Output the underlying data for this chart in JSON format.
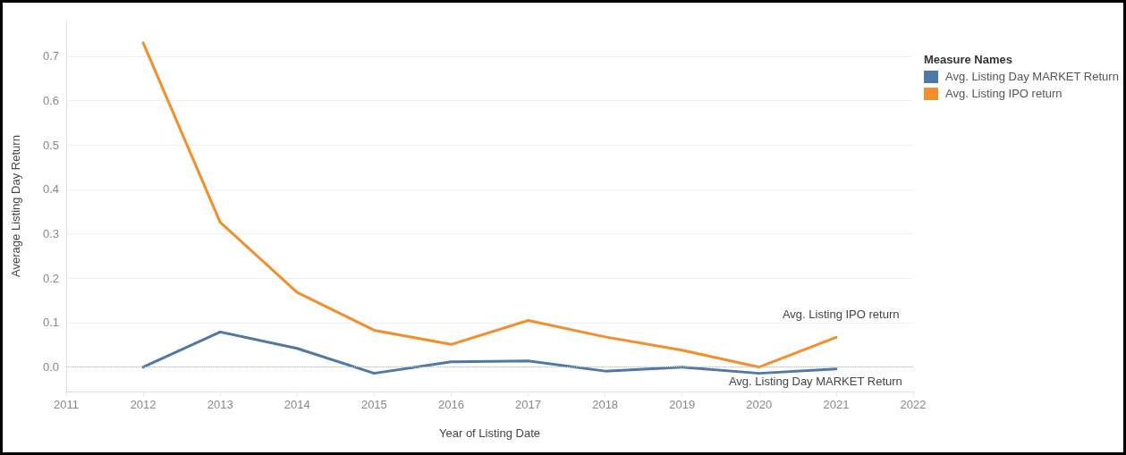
{
  "chart_data": {
    "type": "line",
    "xlabel": "Year of Listing Date",
    "ylabel": "Average Listing Day Return",
    "legend_title": "Measure Names",
    "x": [
      2012,
      2013,
      2014,
      2015,
      2016,
      2017,
      2018,
      2019,
      2020,
      2021
    ],
    "series": [
      {
        "name": "Avg. Listing Day MARKET Return",
        "color": "#4e79a7",
        "values": [
          0.0,
          0.079,
          0.042,
          -0.014,
          0.012,
          0.014,
          -0.009,
          0.0,
          -0.014,
          -0.004
        ]
      },
      {
        "name": "Avg. Listing IPO return",
        "color": "#f28e2b",
        "values": [
          0.73,
          0.326,
          0.168,
          0.083,
          0.051,
          0.105,
          0.068,
          0.038,
          0.0,
          0.067
        ]
      }
    ],
    "xlim": [
      2011,
      2022
    ],
    "xticks": [
      2011,
      2012,
      2013,
      2014,
      2015,
      2016,
      2017,
      2018,
      2019,
      2020,
      2021,
      2022
    ],
    "ylim": [
      -0.055,
      0.78
    ],
    "yticks": [
      {
        "value": 0,
        "label": "0.0"
      },
      {
        "value": 0.1,
        "label": "0.1"
      },
      {
        "value": 0.2,
        "label": "0.2"
      },
      {
        "value": 0.3,
        "label": "0.3"
      },
      {
        "value": 0.4,
        "label": "0.4"
      },
      {
        "value": 0.5,
        "label": "0.5"
      },
      {
        "value": 0.6,
        "label": "0.6"
      },
      {
        "value": 0.7,
        "label": "0.7"
      }
    ],
    "ref_lines": [
      {
        "axis": "y",
        "value": 0,
        "color": "#bbbbbb",
        "line_style": "dotted"
      }
    ],
    "grid": "y",
    "legend": "top right",
    "marker": "none",
    "line_style": "solid"
  }
}
